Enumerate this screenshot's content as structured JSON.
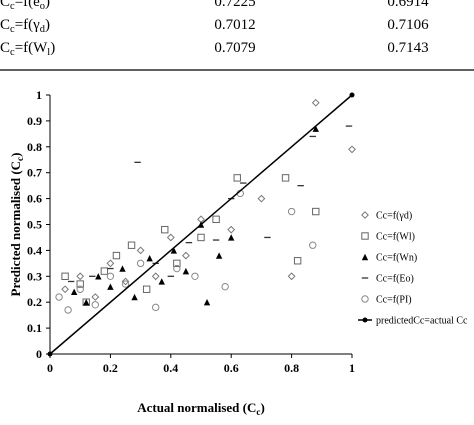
{
  "table": {
    "rows": [
      {
        "label": [
          "C",
          "c",
          "=f(e",
          "o",
          ")"
        ],
        "r2_a": 0.7225,
        "r2_b": 0.6914
      },
      {
        "label": [
          "C",
          "c",
          "=f(γ",
          "d",
          ")"
        ],
        "r2_a": 0.7012,
        "r2_b": 0.7106
      },
      {
        "label": [
          "C",
          "c",
          "=f(W",
          "l",
          ")"
        ],
        "r2_a": 0.7079,
        "r2_b": 0.7143
      }
    ]
  },
  "chart_data": {
    "type": "scatter",
    "xlabel": [
      "Actual normalised (C",
      "c",
      ")"
    ],
    "ylabel": [
      "Predicted normalised (C",
      "c",
      ")"
    ],
    "xlim": [
      0,
      1
    ],
    "ylim": [
      0,
      1
    ],
    "xticks": [
      0,
      0.2,
      0.4,
      0.6,
      0.8,
      1
    ],
    "yticks": [
      0,
      0.1,
      0.2,
      0.3,
      0.4,
      0.5,
      0.6,
      0.7,
      0.8,
      0.9,
      1
    ],
    "legend": "right",
    "series": [
      {
        "name": "Cc=f(γd)",
        "marker": "diamond",
        "color": "#777777",
        "x": [
          0.05,
          0.1,
          0.15,
          0.2,
          0.25,
          0.3,
          0.35,
          0.4,
          0.45,
          0.5,
          0.6,
          0.7,
          0.8,
          0.88,
          1
        ],
        "y": [
          0.25,
          0.3,
          0.22,
          0.35,
          0.28,
          0.4,
          0.3,
          0.45,
          0.38,
          0.52,
          0.48,
          0.6,
          0.3,
          0.97,
          0.79
        ]
      },
      {
        "name": "Cc=f(Wl)",
        "marker": "square",
        "color": "#666666",
        "x": [
          0.05,
          0.1,
          0.12,
          0.18,
          0.22,
          0.27,
          0.32,
          0.38,
          0.42,
          0.5,
          0.55,
          0.62,
          0.78,
          0.82,
          0.88
        ],
        "y": [
          0.3,
          0.27,
          0.2,
          0.32,
          0.38,
          0.42,
          0.25,
          0.48,
          0.35,
          0.45,
          0.52,
          0.68,
          0.68,
          0.36,
          0.55
        ]
      },
      {
        "name": "Cc=f(Wn)",
        "marker": "triangle",
        "color": "#000000",
        "x": [
          0.08,
          0.12,
          0.16,
          0.2,
          0.24,
          0.28,
          0.33,
          0.37,
          0.41,
          0.45,
          0.5,
          0.52,
          0.56,
          0.6,
          0.88
        ],
        "y": [
          0.24,
          0.2,
          0.3,
          0.26,
          0.33,
          0.22,
          0.37,
          0.28,
          0.4,
          0.32,
          0.5,
          0.2,
          0.38,
          0.45,
          0.87
        ]
      },
      {
        "name": "Cc=f(Eo)",
        "marker": "dash",
        "color": "#333333",
        "x": [
          0.07,
          0.14,
          0.2,
          0.29,
          0.35,
          0.4,
          0.46,
          0.55,
          0.6,
          0.64,
          0.72,
          0.83,
          0.87,
          0.99
        ],
        "y": [
          0.28,
          0.3,
          0.33,
          0.74,
          0.35,
          0.3,
          0.43,
          0.44,
          0.6,
          0.66,
          0.45,
          0.65,
          0.84,
          0.88
        ]
      },
      {
        "name": "Cc=f(PI)",
        "marker": "circle",
        "color": "#888888",
        "x": [
          0.03,
          0.06,
          0.1,
          0.15,
          0.2,
          0.25,
          0.3,
          0.35,
          0.42,
          0.48,
          0.58,
          0.63,
          0.8,
          0.87
        ],
        "y": [
          0.22,
          0.17,
          0.25,
          0.19,
          0.3,
          0.27,
          0.35,
          0.18,
          0.33,
          0.3,
          0.26,
          0.62,
          0.55,
          0.42
        ]
      },
      {
        "name": "predictedCc=actual Cc",
        "marker": "line",
        "color": "#000000",
        "x": [
          0,
          1
        ],
        "y": [
          0,
          1
        ]
      }
    ]
  }
}
